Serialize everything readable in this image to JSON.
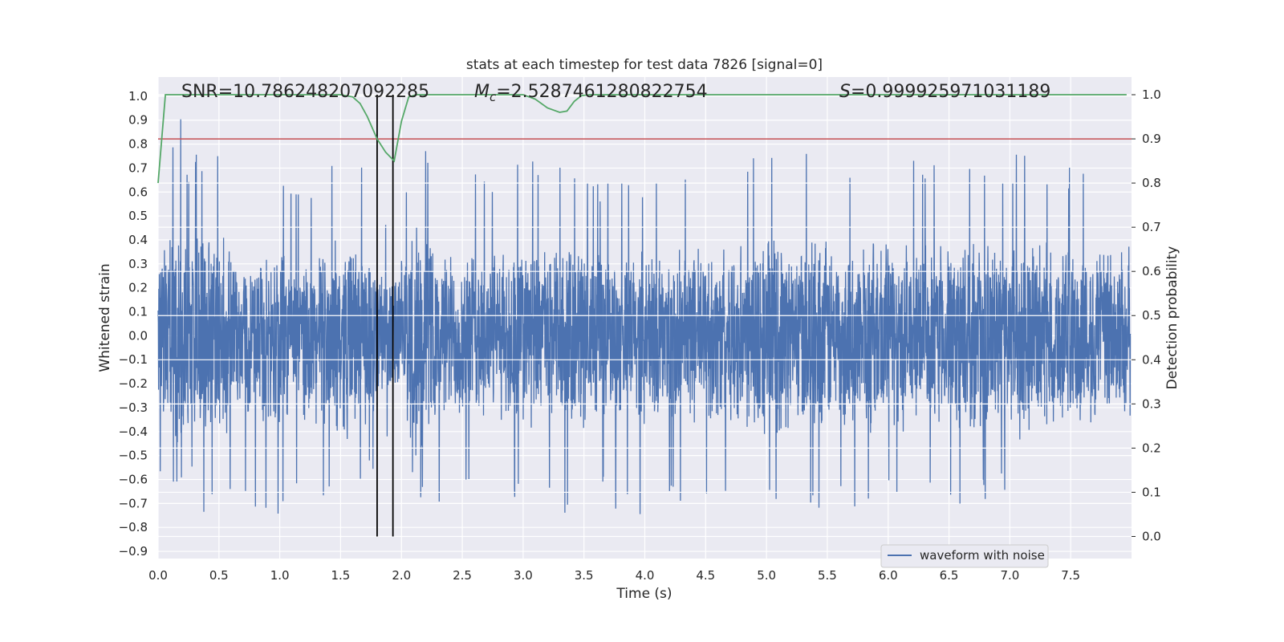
{
  "chart_data": {
    "type": "line",
    "title": "stats at each timestep for test data 7826 [signal=0]",
    "xlabel": "Time (s)",
    "ylabel": "Whitened strain",
    "y2label": "Detection probability",
    "xlim": [
      0,
      8
    ],
    "ylim": [
      -0.93,
      1.08
    ],
    "y2lim": [
      -0.05,
      1.04
    ],
    "x_ticks": [
      0.0,
      0.5,
      1.0,
      1.5,
      2.0,
      2.5,
      3.0,
      3.5,
      4.0,
      4.5,
      5.0,
      5.5,
      6.0,
      6.5,
      7.0,
      7.5
    ],
    "x_tick_labels": [
      "0.0",
      "0.5",
      "1.0",
      "1.5",
      "2.0",
      "2.5",
      "3.0",
      "3.5",
      "4.0",
      "4.5",
      "5.0",
      "5.5",
      "6.0",
      "6.5",
      "7.0",
      "7.5"
    ],
    "y_ticks": [
      1.0,
      0.9,
      0.8,
      0.7,
      0.6,
      0.5,
      0.4,
      0.3,
      0.2,
      0.1,
      0.0,
      -0.1,
      -0.2,
      -0.3,
      -0.4,
      -0.5,
      -0.6,
      -0.7,
      -0.8,
      -0.9
    ],
    "y_tick_labels": [
      "1.0",
      "0.9",
      "0.8",
      "0.7",
      "0.6",
      "0.5",
      "0.4",
      "0.3",
      "0.2",
      "0.1",
      "0.0",
      "−0.1",
      "−0.2",
      "−0.3",
      "−0.4",
      "−0.5",
      "−0.6",
      "−0.7",
      "−0.8",
      "−0.9"
    ],
    "y2_ticks": [
      1.0,
      0.9,
      0.8,
      0.7,
      0.6,
      0.5,
      0.4,
      0.3,
      0.2,
      0.1,
      0.0
    ],
    "y2_tick_labels": [
      "1.0",
      "0.9",
      "0.8",
      "0.7",
      "0.6",
      "0.5",
      "0.4",
      "0.3",
      "0.2",
      "0.1",
      "0.0"
    ],
    "grid": true,
    "legend_placement": "lower-right",
    "annotations": {
      "snr": "SNR=10.786248207092285",
      "mc_symbol": "M",
      "mc_sub": "c",
      "mc_value": "=2.5287461280822754",
      "s_symbol": "S",
      "s_value": "=0.999925971031189"
    },
    "series": [
      {
        "name": "waveform with noise",
        "color": "#4c72b0",
        "envelope": {
          "x": [
            0.0,
            0.17,
            0.25,
            0.4,
            0.5,
            0.62,
            0.8,
            1.0,
            1.1,
            1.3,
            1.55,
            1.65,
            1.8,
            1.94,
            2.05,
            2.1,
            2.3,
            2.5,
            2.8,
            3.0,
            3.3,
            3.45,
            3.6,
            4.0,
            4.3,
            4.6,
            4.9,
            5.07,
            5.2,
            5.45,
            5.6,
            5.85,
            6.2,
            6.5,
            6.8,
            7.0,
            7.1,
            7.3,
            7.5,
            7.65,
            7.85,
            7.99
          ],
          "max": [
            0.64,
            0.98,
            0.74,
            0.81,
            0.82,
            0.7,
            0.67,
            0.72,
            0.63,
            0.68,
            0.82,
            0.75,
            0.6,
            0.47,
            0.72,
            0.98,
            0.66,
            0.72,
            0.68,
            0.74,
            0.72,
            0.78,
            0.65,
            0.68,
            0.72,
            0.7,
            0.78,
            0.89,
            0.72,
            0.8,
            0.73,
            0.82,
            0.75,
            0.73,
            0.76,
            0.71,
            0.85,
            0.73,
            0.72,
            0.71,
            0.73,
            0.7
          ],
          "min": [
            -0.58,
            -0.69,
            -0.6,
            -0.77,
            -0.64,
            -0.68,
            -0.72,
            -0.79,
            -0.62,
            -0.68,
            -0.74,
            -0.64,
            -0.55,
            -0.41,
            -0.62,
            -0.65,
            -0.82,
            -0.67,
            -0.7,
            -0.68,
            -0.72,
            -0.79,
            -0.66,
            -0.82,
            -0.7,
            -0.69,
            -0.75,
            -0.7,
            -0.68,
            -0.76,
            -0.73,
            -0.71,
            -0.68,
            -0.73,
            -0.7,
            -0.66,
            -0.74,
            -0.81,
            -0.7,
            -0.74,
            -0.79,
            -0.7
          ]
        }
      },
      {
        "name": "detection probability",
        "color": "#55a868",
        "x": [
          0.0,
          0.06,
          0.12,
          0.3,
          0.6,
          1.0,
          1.2,
          1.5,
          1.6,
          1.66,
          1.72,
          1.8,
          1.87,
          1.94,
          2.0,
          2.06,
          2.12,
          2.2,
          2.6,
          3.0,
          3.1,
          3.2,
          3.3,
          3.36,
          3.42,
          3.48,
          3.55,
          4.0,
          5.0,
          6.0,
          7.0,
          7.96
        ],
        "y": [
          0.8,
          1.0,
          1.0,
          1.0,
          1.0,
          1.0,
          1.0,
          1.0,
          0.995,
          0.98,
          0.95,
          0.9,
          0.87,
          0.85,
          0.94,
          0.995,
          1.0,
          1.0,
          1.0,
          1.0,
          0.99,
          0.97,
          0.96,
          0.963,
          0.985,
          0.998,
          1.0,
          1.0,
          1.0,
          1.0,
          1.0,
          1.0
        ]
      }
    ],
    "threshold": {
      "value": 0.9,
      "color": "#c44e52"
    },
    "vlines": [
      1.8,
      1.93
    ],
    "vline_color": "#000000",
    "colors": {
      "axes_bg": "#eaeaf2",
      "grid": "#ffffff",
      "text": "#262626"
    }
  }
}
